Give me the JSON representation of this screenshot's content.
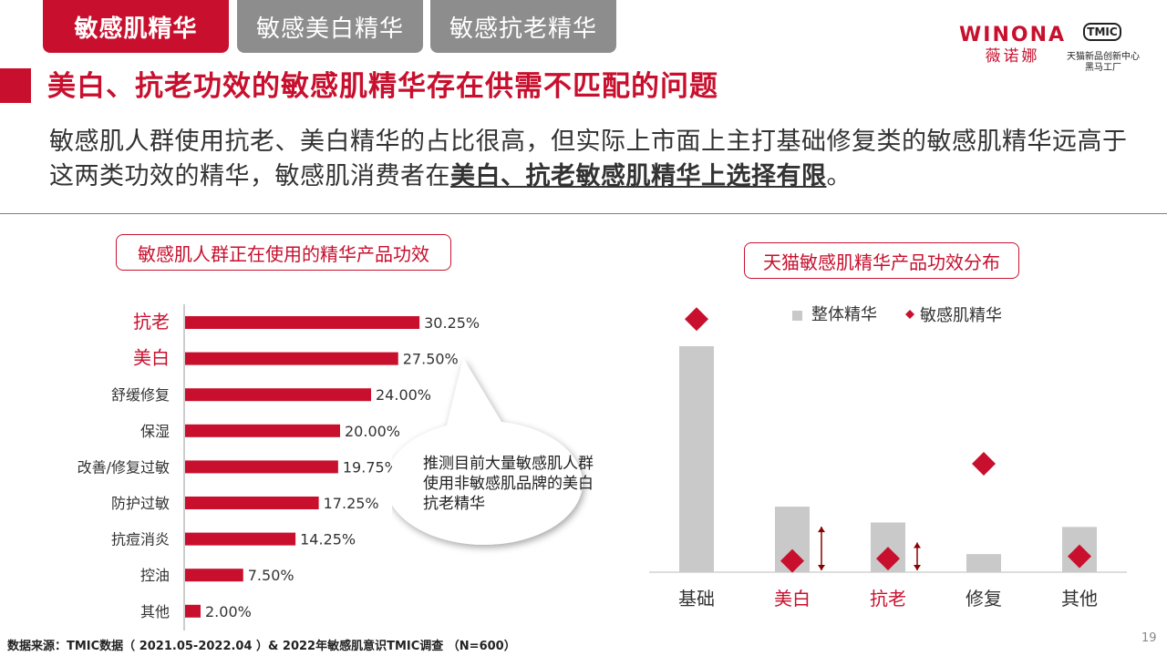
{
  "tabs": [
    {
      "label": "敏感肌精华",
      "active": true
    },
    {
      "label": "敏感美白精华",
      "active": false
    },
    {
      "label": "敏感抗老精华",
      "active": false
    }
  ],
  "brand": {
    "name_en": "WINONA",
    "name_cn": "薇诺娜",
    "partner_logo": "TMIC",
    "partner_line1": "天猫新品创新中心",
    "partner_line2": "黑马工厂"
  },
  "page_title": "美白、抗老功效的敏感肌精华存在供需不匹配的问题",
  "description": {
    "text_part1": "敏感肌人群使用抗老、美白精华的占比很高，但实际上市面上主打基础修复类的敏感肌精华远高于这两类功效的精华，敏感肌消费者在",
    "text_emphasis": "美白、抗老敏感肌精华上选择有限",
    "text_end": "。"
  },
  "colors": {
    "accent": "#c8102e",
    "gray_bar": "#c9c9c9",
    "dark_red": "#8b0000"
  },
  "callout": "推测目前大量敏感肌人群使用非敏感肌品牌的美白抗老精华",
  "chart_data": [
    {
      "type": "bar",
      "orientation": "horizontal",
      "title": "敏感肌人群正在使用的精华产品功效",
      "categories": [
        "抗老",
        "美白",
        "舒缓修复",
        "保湿",
        "改善/修复过敏",
        "防护过敏",
        "抗痘消炎",
        "控油",
        "其他"
      ],
      "values": [
        30.25,
        27.5,
        24.0,
        20.0,
        19.75,
        17.25,
        14.25,
        7.5,
        2.0
      ],
      "value_labels": [
        "30.25%",
        "27.50%",
        "24.00%",
        "20.00%",
        "19.75%",
        "17.25%",
        "14.25%",
        "7.50%",
        "2.00%"
      ],
      "highlighted_categories": [
        "抗老",
        "美白"
      ],
      "unit": "%"
    },
    {
      "type": "bar",
      "title": "天猫敏感肌精华产品功效分布",
      "categories": [
        "基础",
        "美白",
        "抗老",
        "修复",
        "其他"
      ],
      "highlighted_categories": [
        "美白",
        "抗老"
      ],
      "series": [
        {
          "name": "整体精华",
          "mark": "bar",
          "values": [
            100,
            29,
            22,
            8,
            20
          ]
        },
        {
          "name": "敏感肌精华",
          "mark": "diamond",
          "values": [
            112,
            5,
            6,
            48,
            7
          ]
        }
      ],
      "ylim": [
        0,
        120
      ],
      "legend": "top-center",
      "annotations": [
        "gap-arrow-美白",
        "gap-arrow-抗老"
      ]
    }
  ],
  "footer": {
    "source": "数据来源：TMIC数据（ 2021.05-2022.04 ）& 2022年敏感肌意识TMIC调查 （N=600）",
    "page_number": "19"
  }
}
